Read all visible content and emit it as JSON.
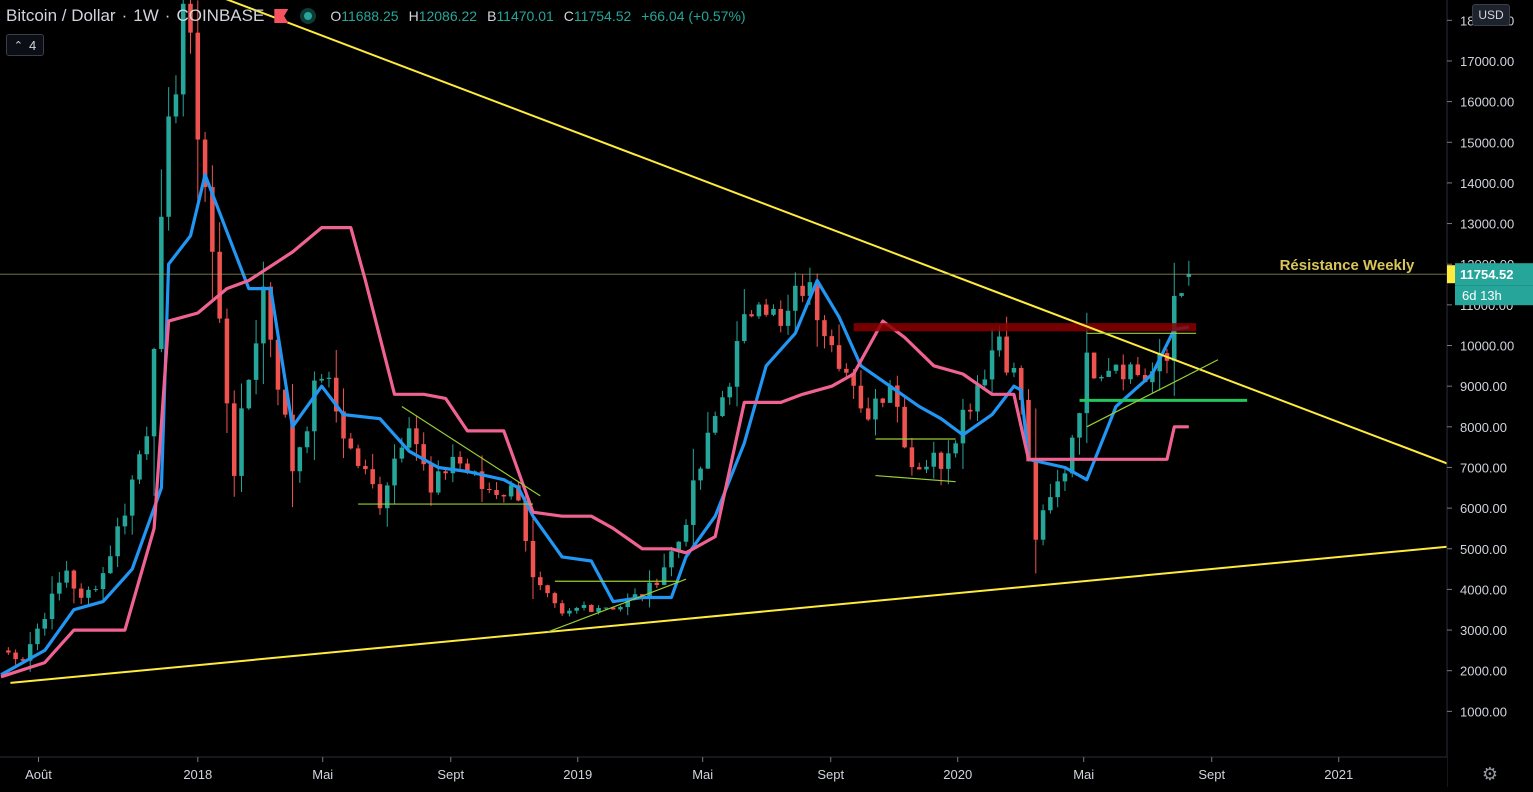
{
  "header": {
    "symbol": "Bitcoin / Dollar",
    "interval": "1W",
    "exchange": "COINBASE",
    "ohlc": {
      "o_label": "O",
      "o": "11688.25",
      "h_label": "H",
      "h": "12086.22",
      "b_label": "B",
      "b": "11470.01",
      "c_label": "C",
      "c": "11754.52",
      "change": "+66.04 (+0.57%)"
    },
    "indicator_count": "4",
    "currency_button": "USD"
  },
  "colors": {
    "background": "#000000",
    "up": "#26a69a",
    "down": "#ef5350",
    "blue_line": "#2196f3",
    "pink_line": "#f06292",
    "trendline": "#ffeb3b",
    "resistance_zone": "#8b0000",
    "support_line": "#22c55e",
    "annotation": "#d9c55a",
    "price_badge": "#26a69a",
    "crosshair_badge": "#ffeb3b"
  },
  "chart_data": {
    "type": "candlestick",
    "title": "Bitcoin / Dollar · 1W · COINBASE",
    "xlabel": "",
    "ylabel": "",
    "ylim": [
      0,
      18500
    ],
    "x_range": [
      "2017-06-25",
      "2021-04-15"
    ],
    "grid": false,
    "y_ticks": [
      1000,
      2000,
      3000,
      4000,
      5000,
      6000,
      7000,
      8000,
      9000,
      10000,
      11000,
      12000,
      13000,
      14000,
      15000,
      16000,
      17000,
      18000
    ],
    "y_tick_labels": [
      "1000.00",
      "2000.00",
      "3000.00",
      "4000.00",
      "5000.00",
      "6000.00",
      "7000.00",
      "8000.00",
      "9000.00",
      "10000.00",
      "11000.00",
      "12000.00",
      "13000.00",
      "14000.00",
      "15000.00",
      "16000.00",
      "17000.00",
      "18000.00"
    ],
    "x_ticks": [
      {
        "date": "2017-08-01",
        "label": "Août"
      },
      {
        "date": "2018-01-01",
        "label": "2018"
      },
      {
        "date": "2018-05-01",
        "label": "Mai"
      },
      {
        "date": "2018-09-01",
        "label": "Sept"
      },
      {
        "date": "2019-01-01",
        "label": "2019"
      },
      {
        "date": "2019-05-01",
        "label": "Mai"
      },
      {
        "date": "2019-09-01",
        "label": "Sept"
      },
      {
        "date": "2020-01-01",
        "label": "2020"
      },
      {
        "date": "2020-05-01",
        "label": "Mai"
      },
      {
        "date": "2020-09-01",
        "label": "Sept"
      },
      {
        "date": "2021-01-01",
        "label": "2021"
      }
    ],
    "anchors": [
      [
        "2017-06-26",
        2500
      ],
      [
        "2017-07-17",
        2300
      ],
      [
        "2017-08-07",
        3400
      ],
      [
        "2017-08-28",
        4500
      ],
      [
        "2017-09-11",
        3700
      ],
      [
        "2017-10-02",
        4400
      ],
      [
        "2017-10-23",
        6000
      ],
      [
        "2017-11-13",
        8000
      ],
      [
        "2017-12-04",
        15000
      ],
      [
        "2017-12-18",
        18500
      ],
      [
        "2018-01-08",
        14000
      ],
      [
        "2018-02-05",
        7000
      ],
      [
        "2018-03-05",
        11400
      ],
      [
        "2018-04-02",
        7000
      ],
      [
        "2018-04-30",
        9400
      ],
      [
        "2018-05-28",
        7400
      ],
      [
        "2018-06-25",
        6200
      ],
      [
        "2018-07-23",
        8300
      ],
      [
        "2018-08-13",
        6300
      ],
      [
        "2018-09-03",
        7300
      ],
      [
        "2018-10-01",
        6500
      ],
      [
        "2018-11-05",
        6400
      ],
      [
        "2018-11-19",
        4200
      ],
      [
        "2018-12-17",
        3300
      ],
      [
        "2019-01-07",
        3600
      ],
      [
        "2019-02-11",
        3600
      ],
      [
        "2019-03-11",
        4000
      ],
      [
        "2019-04-08",
        5200
      ],
      [
        "2019-05-13",
        8200
      ],
      [
        "2019-06-24",
        11500
      ],
      [
        "2019-07-15",
        10300
      ],
      [
        "2019-08-05",
        11500
      ],
      [
        "2019-09-02",
        10400
      ],
      [
        "2019-09-30",
        8200
      ],
      [
        "2019-10-28",
        9200
      ],
      [
        "2019-11-18",
        7100
      ],
      [
        "2019-12-16",
        7200
      ],
      [
        "2020-01-13",
        8700
      ],
      [
        "2020-02-10",
        10300
      ],
      [
        "2020-03-02",
        8700
      ],
      [
        "2020-03-16",
        5300
      ],
      [
        "2020-04-13",
        7000
      ],
      [
        "2020-05-04",
        9500
      ],
      [
        "2020-06-01",
        9700
      ],
      [
        "2020-06-29",
        9200
      ],
      [
        "2020-07-20",
        9600
      ],
      [
        "2020-07-27",
        11300
      ],
      [
        "2020-08-03",
        11688.25
      ]
    ],
    "last_candle": {
      "date": "2020-08-10",
      "open": 11688.25,
      "high": 12086.22,
      "low": 11470.01,
      "close": 11754.52
    },
    "series": [
      {
        "name": "",
        "color": "#2196f3",
        "points": [
          [
            "2017-06-26",
            1900
          ],
          [
            "2017-08-07",
            2500
          ],
          [
            "2017-09-04",
            3500
          ],
          [
            "2017-10-02",
            3700
          ],
          [
            "2017-10-30",
            4500
          ],
          [
            "2017-11-27",
            6500
          ],
          [
            "2017-12-04",
            12000
          ],
          [
            "2017-12-25",
            12700
          ],
          [
            "2018-01-08",
            14200
          ],
          [
            "2018-01-29",
            12800
          ],
          [
            "2018-02-19",
            11400
          ],
          [
            "2018-03-12",
            11400
          ],
          [
            "2018-04-02",
            8000
          ],
          [
            "2018-04-30",
            9000
          ],
          [
            "2018-05-21",
            8300
          ],
          [
            "2018-06-25",
            8200
          ],
          [
            "2018-07-23",
            7400
          ],
          [
            "2018-08-20",
            7000
          ],
          [
            "2018-09-17",
            6900
          ],
          [
            "2018-10-22",
            6700
          ],
          [
            "2018-11-05",
            6500
          ],
          [
            "2018-11-19",
            5800
          ],
          [
            "2018-12-17",
            4800
          ],
          [
            "2019-01-14",
            4700
          ],
          [
            "2019-02-04",
            3700
          ],
          [
            "2019-03-04",
            3800
          ],
          [
            "2019-04-01",
            3800
          ],
          [
            "2019-04-15",
            4800
          ],
          [
            "2019-05-13",
            5800
          ],
          [
            "2019-06-10",
            7600
          ],
          [
            "2019-07-01",
            9500
          ],
          [
            "2019-07-29",
            10300
          ],
          [
            "2019-08-19",
            11600
          ],
          [
            "2019-09-09",
            10700
          ],
          [
            "2019-09-30",
            9500
          ],
          [
            "2019-10-28",
            9000
          ],
          [
            "2019-11-25",
            8500
          ],
          [
            "2019-12-16",
            8200
          ],
          [
            "2020-01-06",
            7800
          ],
          [
            "2020-02-03",
            8300
          ],
          [
            "2020-02-24",
            9000
          ],
          [
            "2020-03-02",
            8900
          ],
          [
            "2020-03-09",
            7200
          ],
          [
            "2020-04-13",
            7000
          ],
          [
            "2020-05-04",
            6700
          ],
          [
            "2020-06-01",
            8500
          ],
          [
            "2020-07-06",
            9300
          ],
          [
            "2020-07-27",
            10400
          ],
          [
            "2020-08-10",
            10450
          ]
        ]
      },
      {
        "name": "",
        "color": "#f06292",
        "points": [
          [
            "2017-06-26",
            1850
          ],
          [
            "2017-08-07",
            2200
          ],
          [
            "2017-09-04",
            3000
          ],
          [
            "2017-10-23",
            3000
          ],
          [
            "2017-11-20",
            5500
          ],
          [
            "2017-12-04",
            10600
          ],
          [
            "2018-01-01",
            10800
          ],
          [
            "2018-01-29",
            11400
          ],
          [
            "2018-02-19",
            11600
          ],
          [
            "2018-04-02",
            12300
          ],
          [
            "2018-04-30",
            12900
          ],
          [
            "2018-05-28",
            12900
          ],
          [
            "2018-06-11",
            11600
          ],
          [
            "2018-07-09",
            8800
          ],
          [
            "2018-08-06",
            8800
          ],
          [
            "2018-08-27",
            8700
          ],
          [
            "2018-09-17",
            7900
          ],
          [
            "2018-10-22",
            7900
          ],
          [
            "2018-11-05",
            6900
          ],
          [
            "2018-11-19",
            5900
          ],
          [
            "2018-12-17",
            5800
          ],
          [
            "2019-01-14",
            5800
          ],
          [
            "2019-02-04",
            5500
          ],
          [
            "2019-03-04",
            5000
          ],
          [
            "2019-04-01",
            5000
          ],
          [
            "2019-04-15",
            4900
          ],
          [
            "2019-05-13",
            5300
          ],
          [
            "2019-06-10",
            8600
          ],
          [
            "2019-07-15",
            8600
          ],
          [
            "2019-08-05",
            8800
          ],
          [
            "2019-09-02",
            9000
          ],
          [
            "2019-09-23",
            9300
          ],
          [
            "2019-10-21",
            10600
          ],
          [
            "2019-11-11",
            10200
          ],
          [
            "2019-12-09",
            9500
          ],
          [
            "2020-01-06",
            9300
          ],
          [
            "2020-02-03",
            8800
          ],
          [
            "2020-02-24",
            8800
          ],
          [
            "2020-03-09",
            7200
          ],
          [
            "2020-06-01",
            7200
          ],
          [
            "2020-06-29",
            7200
          ],
          [
            "2020-07-20",
            7200
          ],
          [
            "2020-07-27",
            8000
          ],
          [
            "2020-08-10",
            8000
          ]
        ]
      }
    ],
    "trendlines": [
      {
        "from": [
          "2017-10-30",
          19400
        ],
        "to": [
          "2021-04-15",
          7100
        ],
        "color": "#ffeb3b"
      },
      {
        "from": [
          "2017-07-05",
          1700
        ],
        "to": [
          "2021-04-15",
          5050
        ],
        "color": "#ffeb3b"
      },
      {
        "from": [
          "2018-07-16",
          8500
        ],
        "to": [
          "2018-11-26",
          6300
        ],
        "color": "#9acd32"
      },
      {
        "from": [
          "2018-06-04",
          6100
        ],
        "to": [
          "2018-11-19",
          6100
        ],
        "color": "#9acd32"
      },
      {
        "from": [
          "2018-12-10",
          4200
        ],
        "to": [
          "2019-04-08",
          4200
        ],
        "color": "#9acd32"
      },
      {
        "from": [
          "2018-12-03",
          2950
        ],
        "to": [
          "2019-04-15",
          4250
        ],
        "color": "#9acd32"
      },
      {
        "from": [
          "2019-10-14",
          7700
        ],
        "to": [
          "2019-12-30",
          7700
        ],
        "color": "#9acd32"
      },
      {
        "from": [
          "2019-10-14",
          6800
        ],
        "to": [
          "2019-12-30",
          6650
        ],
        "color": "#9acd32"
      },
      {
        "from": [
          "2020-05-04",
          10300
        ],
        "to": [
          "2020-08-17",
          10300
        ],
        "color": "#9acd32"
      },
      {
        "from": [
          "2020-05-04",
          8000
        ],
        "to": [
          "2020-09-07",
          9650
        ],
        "color": "#9acd32"
      }
    ],
    "resistance_zone": {
      "x_start": "2019-09-23",
      "x_end": "2020-08-17",
      "y_low": 10350,
      "y_high": 10550,
      "label": "Résistance Weekly"
    },
    "support_line": {
      "x_start": "2020-04-27",
      "x_end": "2020-10-05",
      "y": 8650
    },
    "last_price": "11754.52",
    "countdown": "6d 13h",
    "crosshair_price": 11754.52
  }
}
